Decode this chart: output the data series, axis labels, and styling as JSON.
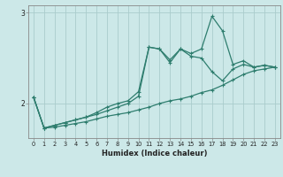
{
  "title": "",
  "xlabel": "Humidex (Indice chaleur)",
  "bg_color": "#cce8e8",
  "grid_color": "#aacccc",
  "line_color": "#2e7d6e",
  "xlim": [
    -0.5,
    23.5
  ],
  "ylim": [
    1.62,
    3.08
  ],
  "yticks": [
    2,
    3
  ],
  "xticks": [
    0,
    1,
    2,
    3,
    4,
    5,
    6,
    7,
    8,
    9,
    10,
    11,
    12,
    13,
    14,
    15,
    16,
    17,
    18,
    19,
    20,
    21,
    22,
    23
  ],
  "line1_x": [
    0,
    1,
    2,
    3,
    4,
    5,
    6,
    7,
    8,
    9,
    10,
    11,
    12,
    13,
    14,
    15,
    16,
    17,
    18,
    19,
    20,
    21,
    22,
    23
  ],
  "line1_y": [
    2.07,
    1.73,
    1.74,
    1.76,
    1.78,
    1.8,
    1.83,
    1.86,
    1.88,
    1.9,
    1.93,
    1.96,
    2.0,
    2.03,
    2.05,
    2.08,
    2.12,
    2.15,
    2.2,
    2.26,
    2.32,
    2.36,
    2.38,
    2.4
  ],
  "line2_x": [
    0,
    1,
    2,
    3,
    4,
    5,
    6,
    7,
    8,
    9,
    10,
    11,
    12,
    13,
    14,
    15,
    16,
    17,
    18,
    19,
    20,
    21,
    22,
    23
  ],
  "line2_y": [
    2.07,
    1.73,
    1.76,
    1.79,
    1.82,
    1.85,
    1.88,
    1.92,
    1.96,
    2.0,
    2.08,
    2.62,
    2.6,
    2.48,
    2.6,
    2.52,
    2.5,
    2.35,
    2.25,
    2.38,
    2.43,
    2.4,
    2.42,
    2.4
  ],
  "line3_x": [
    0,
    1,
    2,
    3,
    4,
    5,
    6,
    7,
    8,
    9,
    10,
    11,
    12,
    13,
    14,
    15,
    16,
    17,
    18,
    19,
    20,
    21,
    22,
    23
  ],
  "line3_y": [
    2.07,
    1.73,
    1.76,
    1.79,
    1.82,
    1.85,
    1.9,
    1.96,
    2.0,
    2.03,
    2.13,
    2.62,
    2.6,
    2.45,
    2.6,
    2.55,
    2.6,
    2.96,
    2.8,
    2.43,
    2.47,
    2.4,
    2.42,
    2.4
  ]
}
